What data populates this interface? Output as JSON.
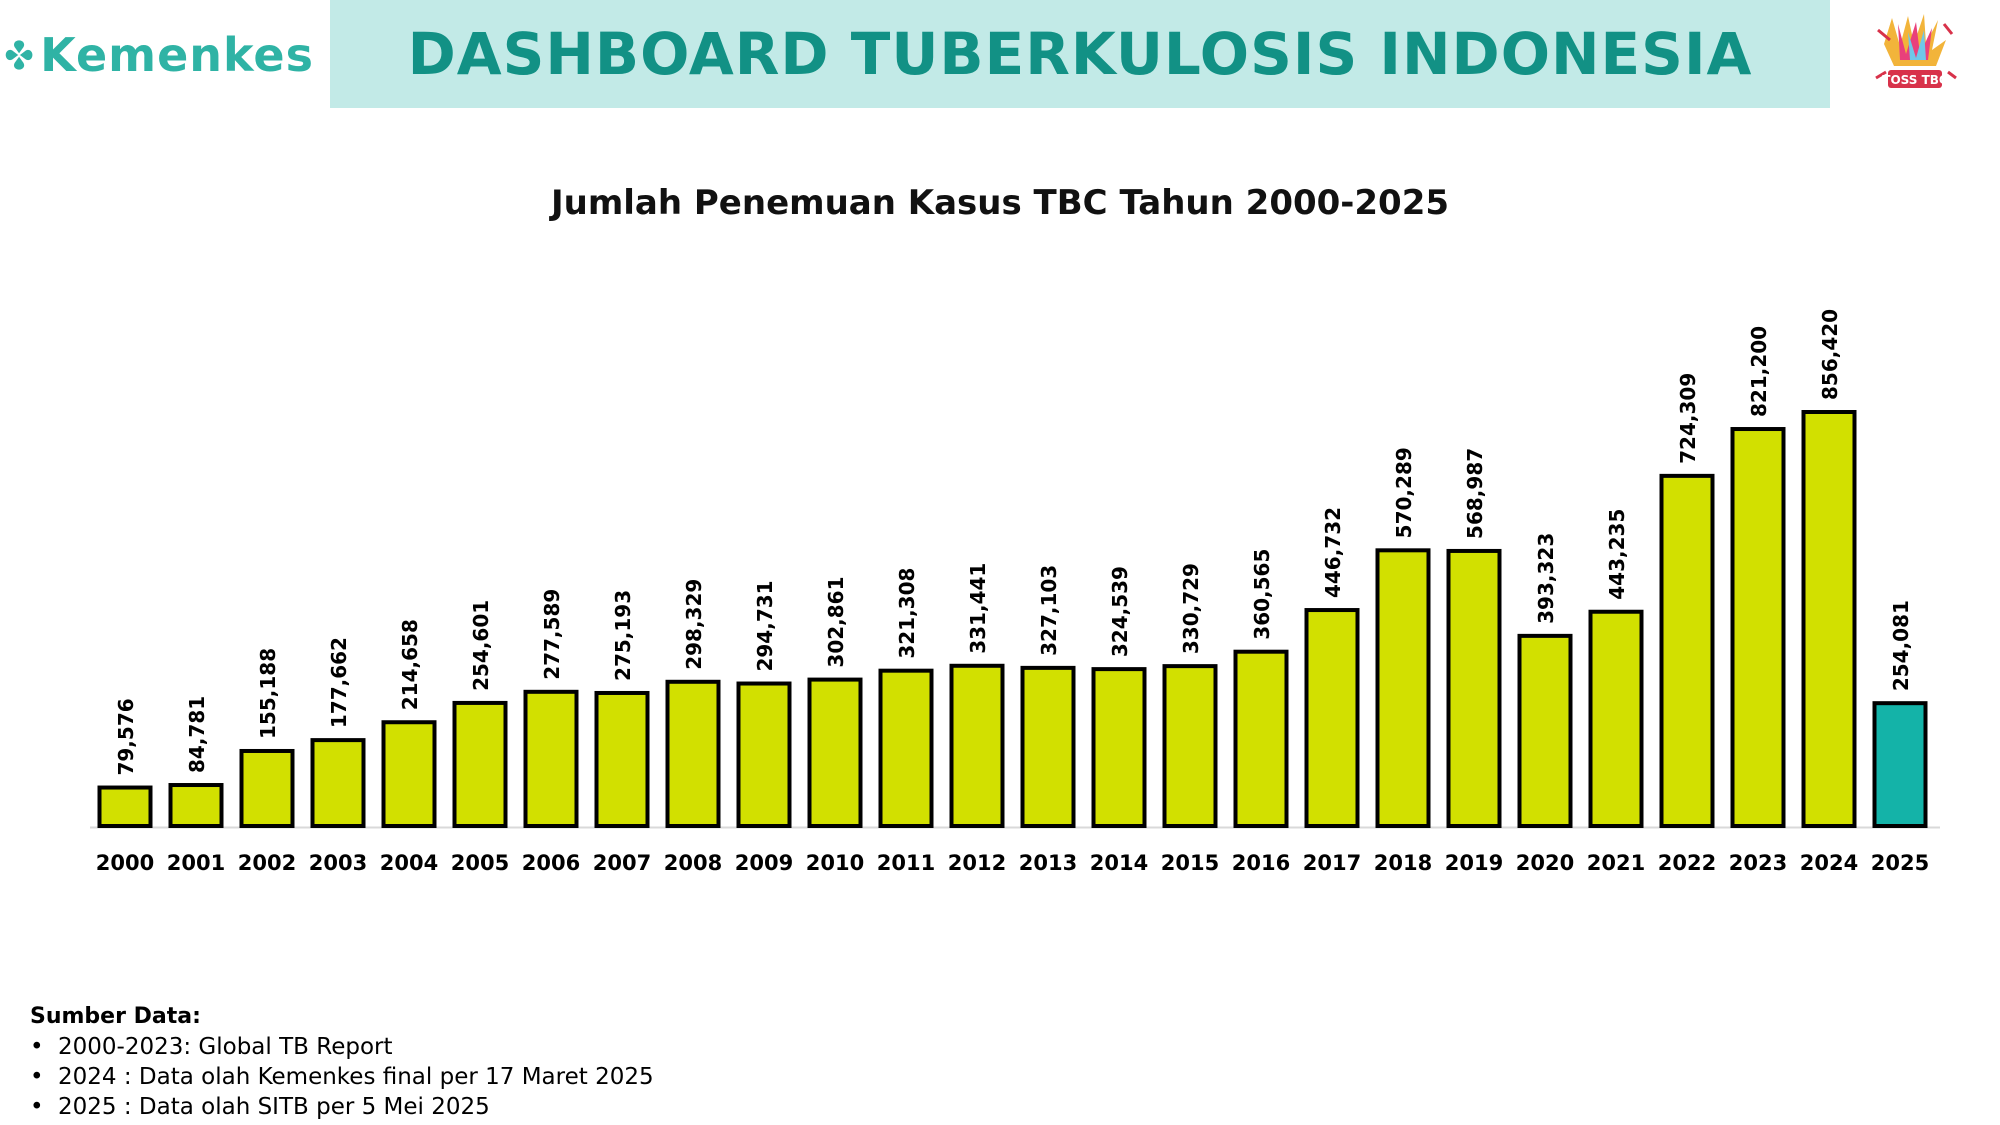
{
  "header": {
    "logo_text": "Kemenkes",
    "title": "DASHBOARD TUBERKULOSIS INDONESIA",
    "badge_text": "TOSS TBC"
  },
  "colors": {
    "accent_teal": "#2fb3a5",
    "header_band": "#c2eae7",
    "header_title": "#129185",
    "bar_default": "#d2e000",
    "bar_highlight": "#14b3a8"
  },
  "chart_data": {
    "type": "bar",
    "title": "Jumlah Penemuan Kasus TBC Tahun 2000-2025",
    "xlabel": "",
    "ylabel": "",
    "categories": [
      "2000",
      "2001",
      "2002",
      "2003",
      "2004",
      "2005",
      "2006",
      "2007",
      "2008",
      "2009",
      "2010",
      "2011",
      "2012",
      "2013",
      "2014",
      "2015",
      "2016",
      "2017",
      "2018",
      "2019",
      "2020",
      "2021",
      "2022",
      "2023",
      "2024",
      "2025"
    ],
    "values": [
      79576,
      84781,
      155188,
      177662,
      214658,
      254601,
      277589,
      275193,
      298329,
      294731,
      302861,
      321308,
      331441,
      327103,
      324539,
      330729,
      360565,
      446732,
      570289,
      568987,
      393323,
      443235,
      724309,
      821200,
      856420,
      254081
    ],
    "value_labels": [
      "79,576",
      "84,781",
      "155,188",
      "177,662",
      "214,658",
      "254,601",
      "277,589",
      "275,193",
      "298,329",
      "294,731",
      "302,861",
      "321,308",
      "331,441",
      "327,103",
      "324,539",
      "330,729",
      "360,565",
      "446,732",
      "570,289",
      "568,987",
      "393,323",
      "443,235",
      "724,309",
      "821,200",
      "856,420",
      "254,081"
    ],
    "highlight_category": "2025",
    "ylim": [
      0,
      856420
    ],
    "grid": false,
    "legend": "none"
  },
  "sources": {
    "heading": "Sumber Data:",
    "items": [
      "2000-2023: Global TB Report",
      "2024 : Data olah Kemenkes final per 17 Maret 2025",
      "2025 : Data olah SITB per 5 Mei 2025"
    ]
  }
}
